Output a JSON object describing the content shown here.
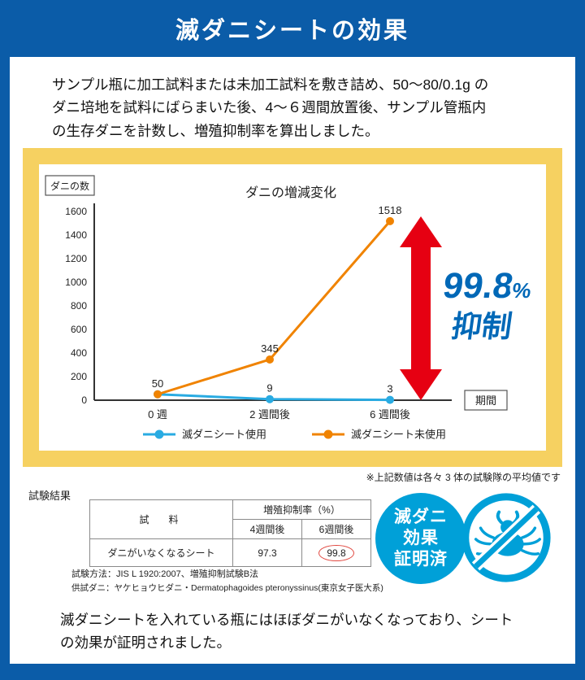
{
  "page": {
    "title": "滅ダニシートの効果",
    "intro_lines": [
      "サンプル瓶に加工試料または未加工試料を敷き詰め、50〜80/0.1g の",
      "ダニ培地を試料にばらまいた後、4〜６週間放置後、サンプル管瓶内",
      "の生存ダニを計数し、増殖抑制率を算出しました。"
    ],
    "conclusion_lines": [
      "滅ダニシートを入れている瓶にはほぼダニがいなくなっており、シート",
      "の効果が証明されました。"
    ]
  },
  "colors": {
    "frame_blue": "#0b5ca8",
    "panel_yellow": "#f6d161",
    "arrow_red": "#e60012",
    "annotation_blue": "#0068b7",
    "badge_blue": "#00a0d8",
    "line_used": "#29abe2",
    "line_unused": "#f08300"
  },
  "chart_data": {
    "type": "line",
    "title": "ダニの増減変化",
    "y_axis_label": "ダニの数",
    "x_axis_label": "期間",
    "categories": [
      "0 週",
      "2 週間後",
      "6 週間後"
    ],
    "ylim": [
      0,
      1600
    ],
    "ytick_step": 200,
    "series": [
      {
        "name": "滅ダニシート使用",
        "color": "#29abe2",
        "values": [
          50,
          9,
          3
        ]
      },
      {
        "name": "滅ダニシート未使用",
        "color": "#f08300",
        "values": [
          50,
          345,
          1518
        ]
      }
    ],
    "annotation": {
      "value": "99.8",
      "unit": "%",
      "text": "抑制",
      "color": "#0068b7",
      "arrow_color": "#e60012"
    },
    "note": "※上記数値は各々 3 体の試験隊の平均値です",
    "legend_position": "bottom",
    "grid": false
  },
  "results": {
    "section_label": "試験結果",
    "table": {
      "col_sample": "試　料",
      "col_rate": "増殖抑制率（%）",
      "col_4w": "4週間後",
      "col_6w": "6週間後",
      "row_sample": "ダニがいなくなるシート",
      "val_4w": "97.3",
      "val_6w": "99.8"
    },
    "method": "試験方法：JIS L 1920:2007、増殖抑制試験B法",
    "specimen": "供試ダニ：ヤケヒョウヒダニ・Dermatophagoides pteronyssinus(東京女子医大系)"
  },
  "badge": {
    "line1": "滅ダニ",
    "line2": "効果",
    "line3": "証明済"
  }
}
